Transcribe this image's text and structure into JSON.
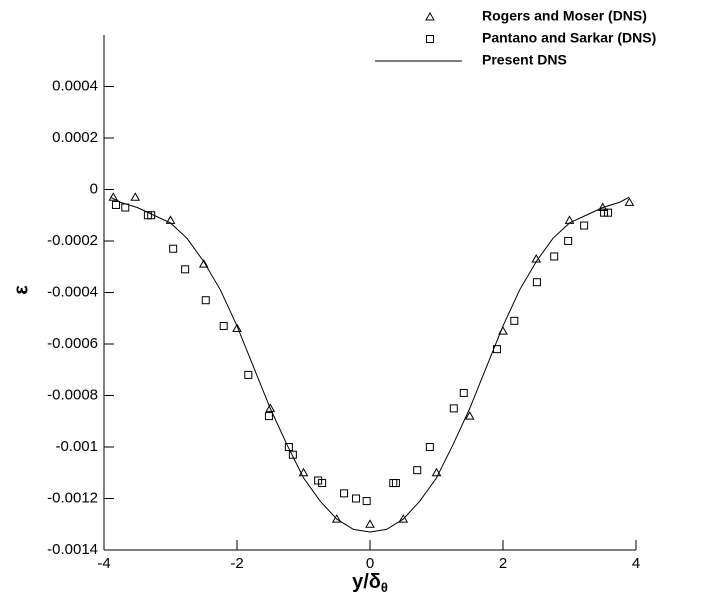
{
  "chart_data": {
    "type": "scatter-line",
    "xlabel": {
      "main": "y/δ",
      "sub": "θ"
    },
    "ylabel": "ε",
    "xlim": [
      -4,
      4
    ],
    "xticks": [
      -4,
      -2,
      0,
      2,
      4
    ],
    "ylim": [
      -0.0014,
      0.0006
    ],
    "yticks": [
      -0.0014,
      -0.0012,
      -0.001,
      -0.0008,
      -0.0006,
      -0.0004,
      -0.0002,
      0,
      0.0002,
      0.0004
    ],
    "legend": "top-right",
    "series": [
      {
        "name": "Rogers and Moser (DNS)",
        "marker": "triangle",
        "color": "#000000",
        "x": [
          -3.86,
          -3.53,
          -3.0,
          -2.5,
          -2.0,
          -1.5,
          -1.0,
          -0.5,
          0,
          0.5,
          1.0,
          1.5,
          2.0,
          2.5,
          3.0,
          3.5,
          3.9
        ],
        "values": [
          -3e-05,
          -3e-05,
          -0.00012,
          -0.00029,
          -0.00054,
          -0.00085,
          -0.0011,
          -0.00128,
          -0.0013,
          -0.00128,
          -0.0011,
          -0.00088,
          -0.00055,
          -0.00027,
          -0.00012,
          -7e-05,
          -5e-05
        ]
      },
      {
        "name": "Pantano and Sarkar (DNS)",
        "marker": "square",
        "color": "#000000",
        "x": [
          -3.82,
          -3.68,
          -3.34,
          -3.29,
          -2.96,
          -2.78,
          -2.47,
          -2.2,
          -1.83,
          -1.52,
          -1.22,
          -1.16,
          -0.78,
          -0.72,
          -0.39,
          -0.21,
          -0.05,
          0.35,
          0.39,
          0.71,
          0.9,
          1.26,
          1.41,
          1.91,
          2.17,
          2.51,
          2.77,
          2.98,
          3.22,
          3.52,
          3.58
        ],
        "values": [
          -6e-05,
          -7e-05,
          -0.0001,
          -0.0001,
          -0.00023,
          -0.00031,
          -0.00043,
          -0.00053,
          -0.00072,
          -0.00088,
          -0.001,
          -0.00103,
          -0.00113,
          -0.00114,
          -0.00118,
          -0.0012,
          -0.00121,
          -0.00114,
          -0.00114,
          -0.00109,
          -0.001,
          -0.00085,
          -0.00079,
          -0.00062,
          -0.00051,
          -0.00036,
          -0.00026,
          -0.0002,
          -0.00014,
          -9e-05,
          -9e-05
        ]
      },
      {
        "name": "Present DNS",
        "marker": "line",
        "color": "#000000",
        "x": [
          -3.9,
          -3.75,
          -3.5,
          -3.25,
          -3,
          -2.75,
          -2.5,
          -2.25,
          -2,
          -1.75,
          -1.5,
          -1.25,
          -1,
          -0.75,
          -0.5,
          -0.25,
          0,
          0.25,
          0.5,
          0.75,
          1,
          1.25,
          1.5,
          1.75,
          2,
          2.25,
          2.5,
          2.75,
          3,
          3.25,
          3.5,
          3.75,
          3.9
        ],
        "values": [
          -3e-05,
          -5e-05,
          -7e-05,
          -0.0001,
          -0.00013,
          -0.00019,
          -0.00028,
          -0.00039,
          -0.00053,
          -0.00069,
          -0.00085,
          -0.00099,
          -0.00112,
          -0.00121,
          -0.00128,
          -0.00132,
          -0.00133,
          -0.00132,
          -0.00128,
          -0.00121,
          -0.00112,
          -0.00099,
          -0.00085,
          -0.00069,
          -0.00053,
          -0.00039,
          -0.00028,
          -0.00019,
          -0.00013,
          -0.0001,
          -7e-05,
          -5e-05,
          -3e-05
        ]
      }
    ]
  }
}
